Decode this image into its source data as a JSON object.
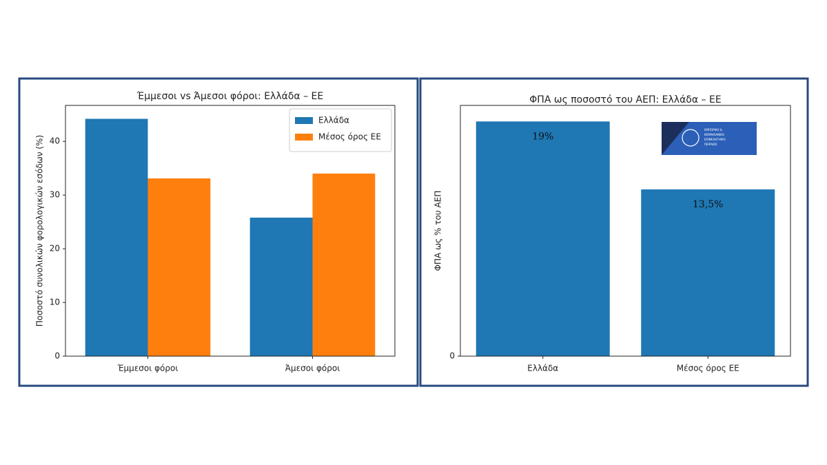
{
  "chart_data": [
    {
      "type": "bar",
      "title": "Έμμεσοι vs Άμεσοι φόροι: Ελλάδα – ΕΕ",
      "y_label": "Ποσοστό συνολικών φορολογικών εσόδων (%)",
      "categories": [
        "Έμμεσοι φόροι",
        "Άμεσοι φόροι"
      ],
      "series": [
        {
          "name": "Ελλάδα",
          "color": "#1f77b4",
          "values": [
            44.2,
            25.8
          ]
        },
        {
          "name": "Μέσος όρος ΕΕ",
          "color": "#ff7f0e",
          "values": [
            33.1,
            34.0
          ]
        }
      ],
      "ylim": [
        0,
        46.7
      ],
      "yticks": [
        0,
        10,
        20,
        30,
        40
      ],
      "legend": "upper-right"
    },
    {
      "type": "bar",
      "title": "ΦΠΑ ως ποσοστό του ΑΕΠ: Ελλάδα – ΕΕ",
      "y_label": "ΦΠΑ ως % του ΑΕΠ",
      "categories": [
        "Ελλάδα",
        "Μέσος όρος ΕΕ"
      ],
      "values": [
        19,
        13.5
      ],
      "value_labels": [
        "19%",
        "13,5%"
      ],
      "color": "#1f77b4",
      "ylim": [
        0,
        20.3
      ],
      "yticks": [
        0
      ]
    }
  ],
  "logo": {
    "lines": [
      "ΕΜΠΟΡΙΚΟ &",
      "ΒΙΟΜΗΧΑΝΙΚΟ",
      "ΕΠΙΜΕΛΗΤΗΡΙΟ",
      "ΠΕΙΡΑΙΩΣ"
    ]
  }
}
